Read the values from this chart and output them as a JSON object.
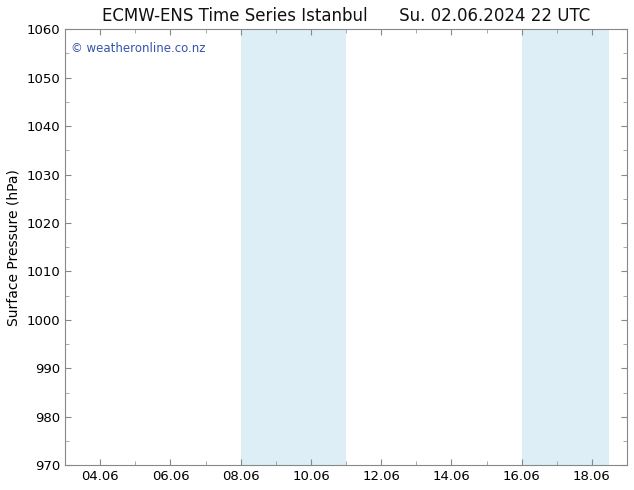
{
  "title_left": "ECMW-ENS Time Series Istanbul",
  "title_right": "Su. 02.06.2024 22 UTC",
  "ylabel": "Surface Pressure (hPa)",
  "ylim": [
    970,
    1060
  ],
  "yticks": [
    970,
    980,
    990,
    1000,
    1010,
    1020,
    1030,
    1040,
    1050,
    1060
  ],
  "xlim": [
    1.0,
    17.0
  ],
  "xtick_labels": [
    "04.06",
    "06.06",
    "08.06",
    "10.06",
    "12.06",
    "14.06",
    "16.06",
    "18.06"
  ],
  "xtick_positions": [
    2,
    4,
    6,
    8,
    10,
    12,
    14,
    16
  ],
  "shaded_bands": [
    {
      "x_start": 6.0,
      "x_end": 7.5
    },
    {
      "x_start": 7.5,
      "x_end": 9.0
    },
    {
      "x_start": 14.0,
      "x_end": 15.0
    },
    {
      "x_start": 15.0,
      "x_end": 16.5
    }
  ],
  "band_color": "#ddeef7",
  "watermark": "© weatheronline.co.nz",
  "watermark_color": "#3355aa",
  "background_color": "#ffffff",
  "plot_bg_color": "#ffffff",
  "title_fontsize": 12,
  "axis_fontsize": 10,
  "tick_fontsize": 9.5,
  "spine_color": "#888888"
}
